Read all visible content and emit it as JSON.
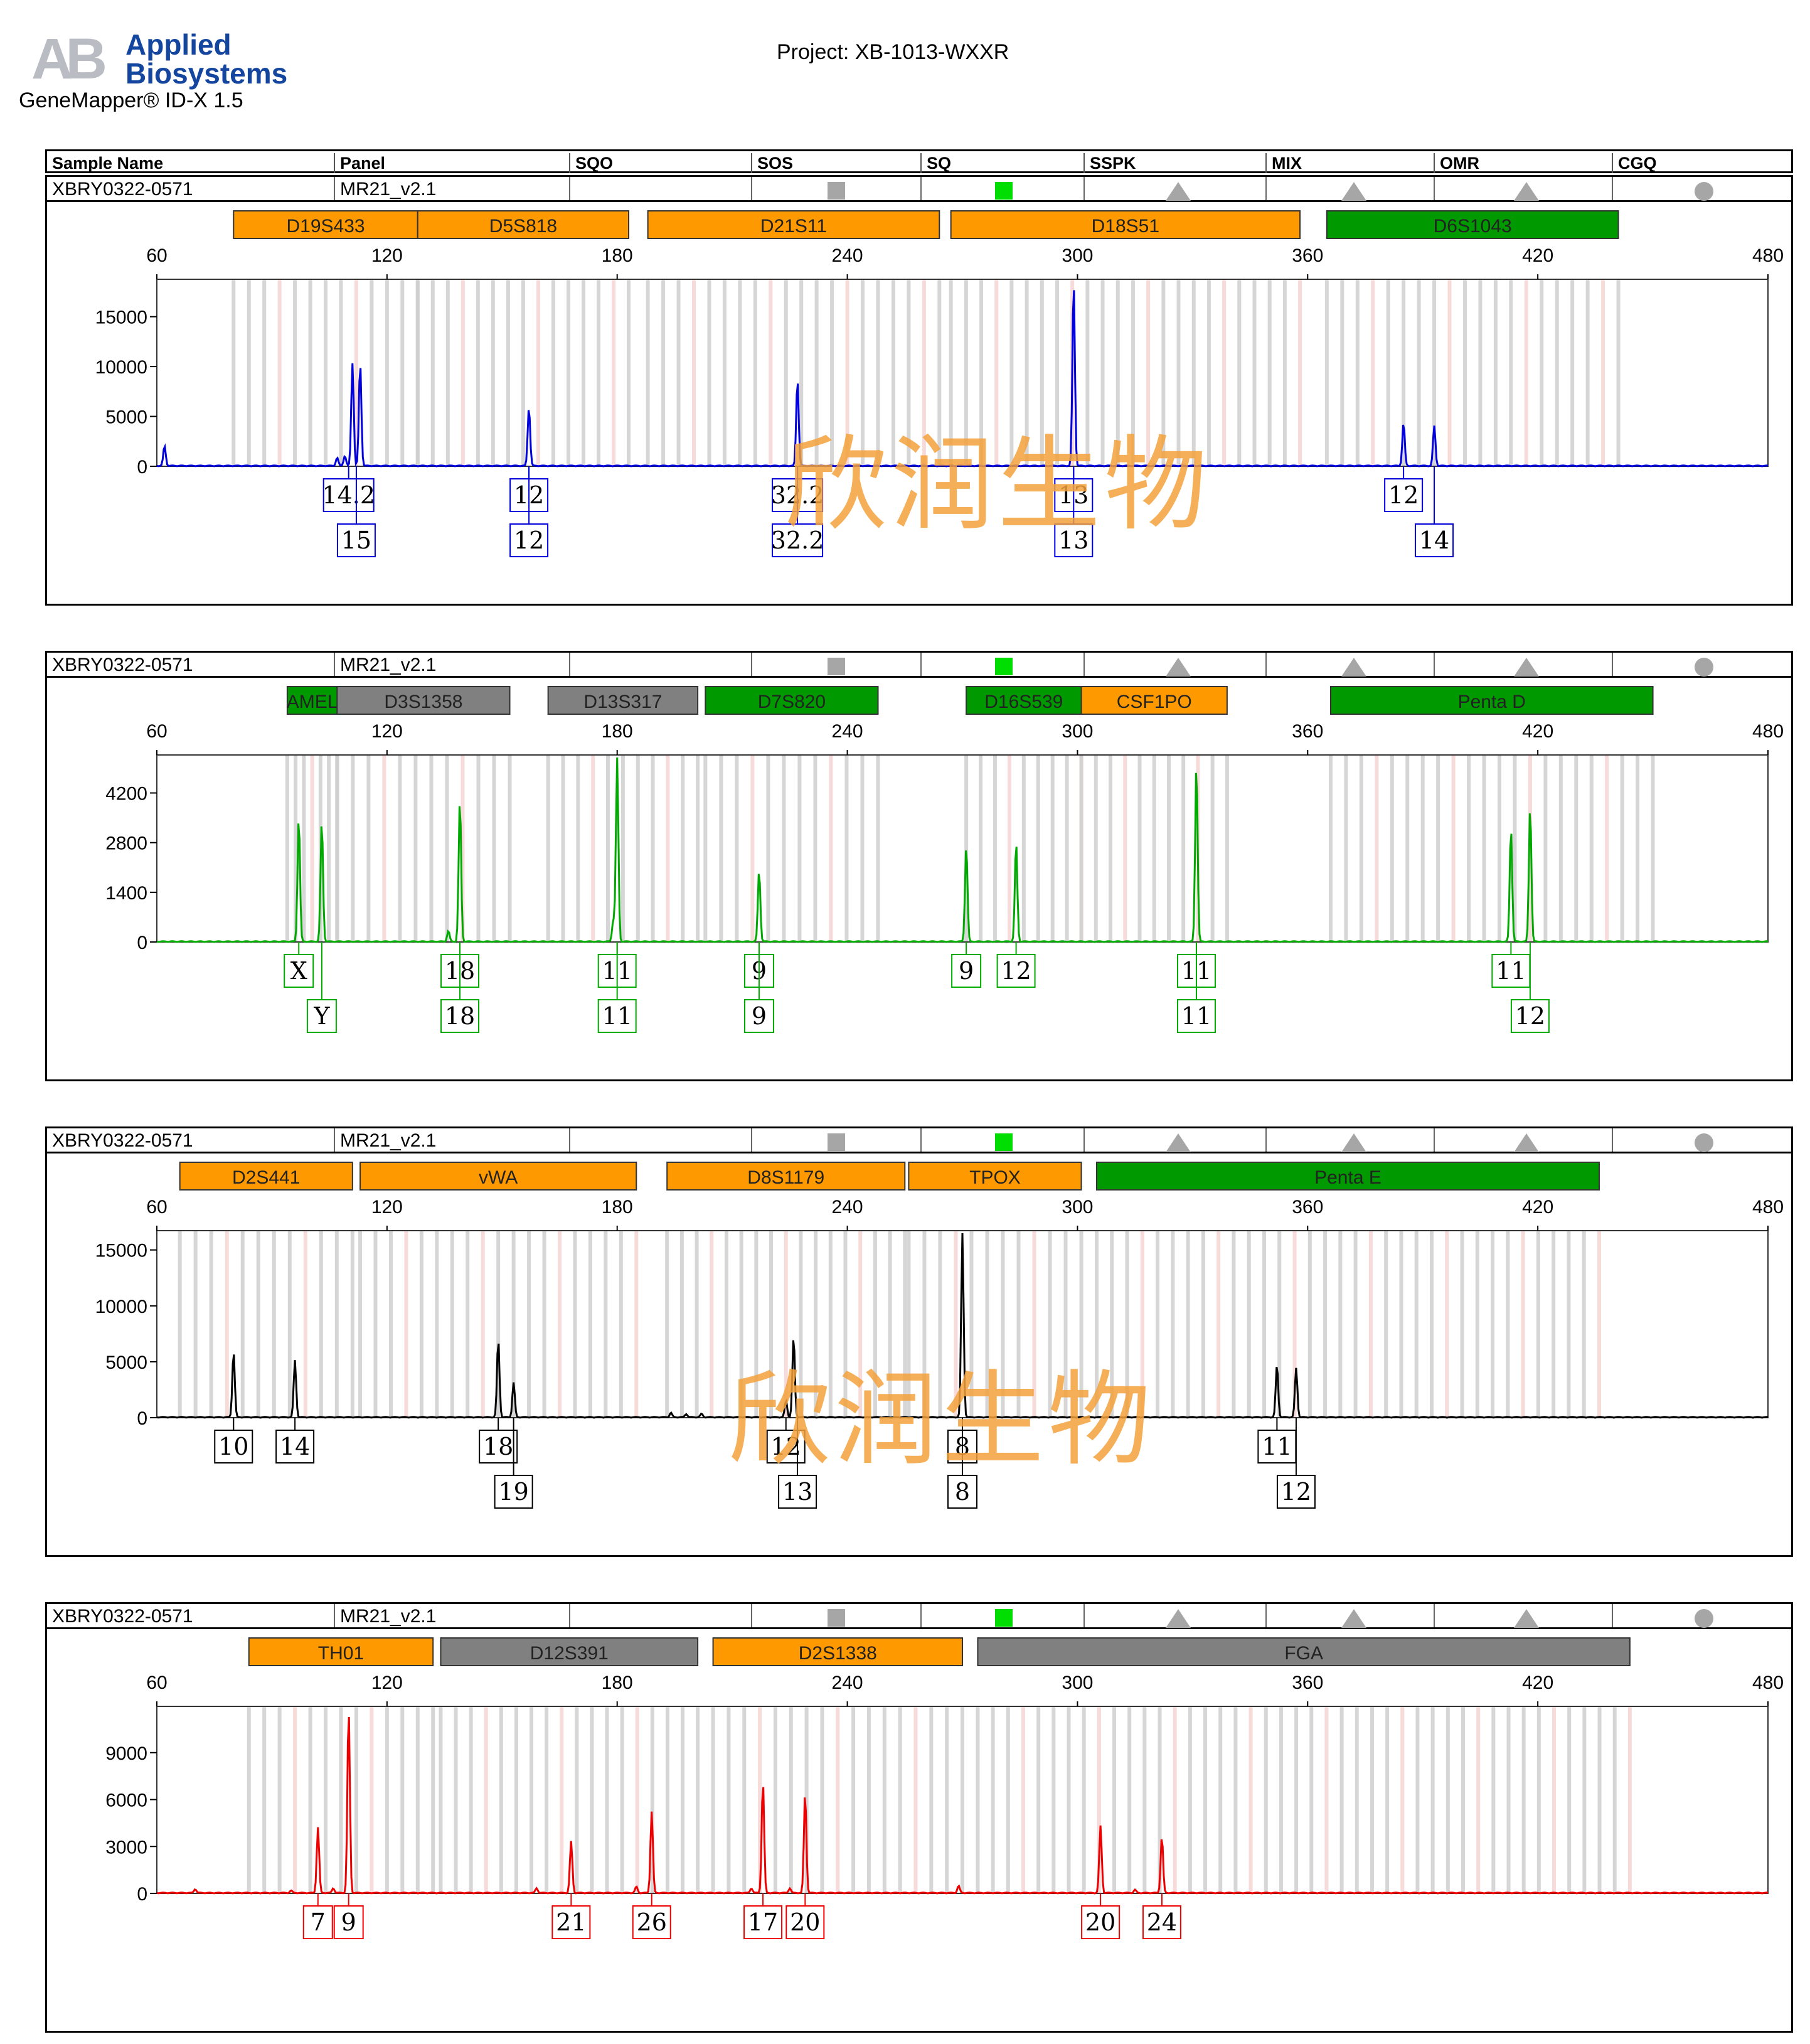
{
  "header": {
    "logo_text": "AB",
    "brand_line1": "Applied",
    "brand_line2": "Biosystems",
    "software": "GeneMapper® ID-X  1.5",
    "project": "Project: XB-1013-WXXR"
  },
  "table": {
    "columns": [
      "Sample Name",
      "Panel",
      "SQO",
      "SOS",
      "SQ",
      "SSPK",
      "MIX",
      "OMR",
      "CGQ"
    ]
  },
  "watermark": "欣润生物",
  "colors": {
    "locus_orange": "#ff9900",
    "locus_green": "#009900",
    "locus_gray": "#808080",
    "blue_dye": "#0000dd",
    "green_dye": "#00aa00",
    "black_dye": "#000000",
    "red_dye": "#ee0000",
    "bin_gray": "#cfcfcf",
    "bin_pink": "#f6d6d6",
    "flag_green": "#00dd00",
    "flag_gray": "#a6a6a6"
  },
  "chart_data": [
    {
      "type": "line",
      "dye": "blue",
      "sample_name": "XBRY0322-0571",
      "panel": "MR21_v2.1",
      "flags": [
        "gray-square",
        "green-square",
        "gray-triangle",
        "gray-triangle",
        "gray-triangle",
        "gray-circle"
      ],
      "x_ticks": [
        60,
        120,
        180,
        240,
        300,
        360,
        420,
        480
      ],
      "xlim": [
        60,
        480
      ],
      "y_ticks": [
        0,
        5000,
        10000,
        15000
      ],
      "ylim": [
        0,
        18500
      ],
      "loci": [
        {
          "name": "D19S433",
          "start": 80,
          "end": 128,
          "status": "orange"
        },
        {
          "name": "D5S818",
          "start": 128,
          "end": 183,
          "status": "orange"
        },
        {
          "name": "D21S11",
          "start": 188,
          "end": 264,
          "status": "orange"
        },
        {
          "name": "D18S51",
          "start": 267,
          "end": 358,
          "status": "orange"
        },
        {
          "name": "D6S1043",
          "start": 365,
          "end": 441,
          "status": "green"
        }
      ],
      "peaks": [
        {
          "x": 62,
          "y": 2000
        },
        {
          "x": 107,
          "y": 800
        },
        {
          "x": 109,
          "y": 1000
        },
        {
          "x": 111,
          "y": 10300
        },
        {
          "x": 113,
          "y": 10300
        },
        {
          "x": 157,
          "y": 5900
        },
        {
          "x": 227,
          "y": 8700
        },
        {
          "x": 299,
          "y": 18500
        },
        {
          "x": 385,
          "y": 4300
        },
        {
          "x": 393,
          "y": 4000
        }
      ],
      "alleles": [
        {
          "x": 110,
          "labels": [
            "14.2",
            "15"
          ],
          "x2": 112
        },
        {
          "x": 157,
          "labels": [
            "12",
            "12"
          ],
          "x2": 157
        },
        {
          "x": 227,
          "labels": [
            "32.2",
            "32.2"
          ],
          "x2": 227
        },
        {
          "x": 299,
          "labels": [
            "13",
            "13"
          ],
          "x2": 299
        },
        {
          "x": 385,
          "labels": [
            "12"
          ]
        },
        {
          "x": 393,
          "labels": [
            "",
            "14"
          ],
          "x2": 393
        }
      ]
    },
    {
      "type": "line",
      "dye": "green",
      "sample_name": "XBRY0322-0571",
      "panel": "MR21_v2.1",
      "flags": [
        "gray-square",
        "green-square",
        "gray-triangle",
        "gray-triangle",
        "gray-triangle",
        "gray-circle"
      ],
      "x_ticks": [
        60,
        120,
        180,
        240,
        300,
        360,
        420,
        480
      ],
      "xlim": [
        60,
        480
      ],
      "y_ticks": [
        0,
        1400,
        2800,
        4200
      ],
      "ylim": [
        0,
        5200
      ],
      "loci": [
        {
          "name": "AMEL",
          "start": 94,
          "end": 107,
          "status": "green"
        },
        {
          "name": "D3S1358",
          "start": 107,
          "end": 152,
          "status": "gray"
        },
        {
          "name": "D13S317",
          "start": 162,
          "end": 201,
          "status": "gray"
        },
        {
          "name": "D7S820",
          "start": 203,
          "end": 248,
          "status": "green"
        },
        {
          "name": "D16S539",
          "start": 271,
          "end": 301,
          "status": "green"
        },
        {
          "name": "CSF1PO",
          "start": 301,
          "end": 339,
          "status": "orange"
        },
        {
          "name": "Penta D",
          "start": 366,
          "end": 450,
          "status": "green"
        }
      ],
      "peaks": [
        {
          "x": 97,
          "y": 3500
        },
        {
          "x": 103,
          "y": 3400
        },
        {
          "x": 136,
          "y": 300
        },
        {
          "x": 139,
          "y": 4000
        },
        {
          "x": 179,
          "y": 600
        },
        {
          "x": 180,
          "y": 5200
        },
        {
          "x": 217,
          "y": 2000
        },
        {
          "x": 271,
          "y": 2700
        },
        {
          "x": 284,
          "y": 2800
        },
        {
          "x": 331,
          "y": 5000
        },
        {
          "x": 413,
          "y": 3200
        },
        {
          "x": 418,
          "y": 3800
        }
      ],
      "alleles": [
        {
          "x": 97,
          "labels": [
            "X"
          ]
        },
        {
          "x": 103,
          "labels": [
            "",
            "Y"
          ],
          "x2": 103
        },
        {
          "x": 139,
          "labels": [
            "18",
            "18"
          ],
          "x2": 139
        },
        {
          "x": 180,
          "labels": [
            "11",
            "11"
          ],
          "x2": 180
        },
        {
          "x": 217,
          "labels": [
            "9",
            "9"
          ],
          "x2": 217
        },
        {
          "x": 271,
          "labels": [
            "9"
          ]
        },
        {
          "x": 284,
          "labels": [
            "12"
          ]
        },
        {
          "x": 331,
          "labels": [
            "11",
            "11"
          ],
          "x2": 331
        },
        {
          "x": 413,
          "labels": [
            "11"
          ]
        },
        {
          "x": 418,
          "labels": [
            "",
            "12"
          ],
          "x2": 418
        }
      ]
    },
    {
      "type": "line",
      "dye": "black",
      "sample_name": "XBRY0322-0571",
      "panel": "MR21_v2.1",
      "flags": [
        "gray-square",
        "green-square",
        "gray-triangle",
        "gray-triangle",
        "gray-triangle",
        "gray-circle"
      ],
      "x_ticks": [
        60,
        120,
        180,
        240,
        300,
        360,
        420,
        480
      ],
      "xlim": [
        60,
        480
      ],
      "y_ticks": [
        0,
        5000,
        10000,
        15000
      ],
      "ylim": [
        0,
        16500
      ],
      "loci": [
        {
          "name": "D2S441",
          "start": 66,
          "end": 111,
          "status": "orange"
        },
        {
          "name": "vWA",
          "start": 113,
          "end": 185,
          "status": "orange"
        },
        {
          "name": "D8S1179",
          "start": 193,
          "end": 255,
          "status": "orange"
        },
        {
          "name": "TPOX",
          "start": 256,
          "end": 301,
          "status": "orange"
        },
        {
          "name": "Penta E",
          "start": 305,
          "end": 436,
          "status": "green"
        }
      ],
      "peaks": [
        {
          "x": 80,
          "y": 5900
        },
        {
          "x": 96,
          "y": 5100
        },
        {
          "x": 149,
          "y": 6900
        },
        {
          "x": 153,
          "y": 3100
        },
        {
          "x": 194,
          "y": 400
        },
        {
          "x": 198,
          "y": 300
        },
        {
          "x": 202,
          "y": 300
        },
        {
          "x": 224,
          "y": 1500
        },
        {
          "x": 226,
          "y": 7200
        },
        {
          "x": 270,
          "y": 16500
        },
        {
          "x": 352,
          "y": 4700
        },
        {
          "x": 357,
          "y": 4400
        }
      ],
      "alleles": [
        {
          "x": 80,
          "labels": [
            "10"
          ]
        },
        {
          "x": 96,
          "labels": [
            "14"
          ]
        },
        {
          "x": 149,
          "labels": [
            "18"
          ]
        },
        {
          "x": 153,
          "labels": [
            "",
            "19"
          ],
          "x2": 153
        },
        {
          "x": 224,
          "labels": [
            "12"
          ]
        },
        {
          "x": 226,
          "labels": [
            "",
            "13"
          ],
          "x2": 227
        },
        {
          "x": 270,
          "labels": [
            "8",
            "8"
          ],
          "x2": 270
        },
        {
          "x": 352,
          "labels": [
            "11"
          ]
        },
        {
          "x": 357,
          "labels": [
            "",
            "12"
          ],
          "x2": 357
        }
      ]
    },
    {
      "type": "line",
      "dye": "red",
      "sample_name": "XBRY0322-0571",
      "panel": "MR21_v2.1",
      "flags": [
        "gray-square",
        "green-square",
        "gray-triangle",
        "gray-triangle",
        "gray-triangle",
        "gray-circle"
      ],
      "x_ticks": [
        60,
        120,
        180,
        240,
        300,
        360,
        420,
        480
      ],
      "xlim": [
        60,
        480
      ],
      "y_ticks": [
        0,
        3000,
        6000,
        9000
      ],
      "ylim": [
        0,
        11800
      ],
      "loci": [
        {
          "name": "TH01",
          "start": 84,
          "end": 132,
          "status": "orange"
        },
        {
          "name": "D12S391",
          "start": 134,
          "end": 201,
          "status": "gray"
        },
        {
          "name": "D2S1338",
          "start": 205,
          "end": 270,
          "status": "orange"
        },
        {
          "name": "FGA",
          "start": 274,
          "end": 444,
          "status": "gray"
        }
      ],
      "peaks": [
        {
          "x": 70,
          "y": 250
        },
        {
          "x": 95,
          "y": 150
        },
        {
          "x": 102,
          "y": 4200
        },
        {
          "x": 106,
          "y": 300
        },
        {
          "x": 110,
          "y": 11800
        },
        {
          "x": 159,
          "y": 300
        },
        {
          "x": 168,
          "y": 3300
        },
        {
          "x": 185,
          "y": 400
        },
        {
          "x": 189,
          "y": 5200
        },
        {
          "x": 215,
          "y": 300
        },
        {
          "x": 218,
          "y": 7100
        },
        {
          "x": 225,
          "y": 300
        },
        {
          "x": 229,
          "y": 6400
        },
        {
          "x": 269,
          "y": 450
        },
        {
          "x": 306,
          "y": 4300
        },
        {
          "x": 315,
          "y": 200
        },
        {
          "x": 322,
          "y": 3600
        }
      ],
      "alleles": [
        {
          "x": 102,
          "labels": [
            "7"
          ]
        },
        {
          "x": 110,
          "labels": [
            "9"
          ]
        },
        {
          "x": 168,
          "labels": [
            "21"
          ]
        },
        {
          "x": 189,
          "labels": [
            "26"
          ]
        },
        {
          "x": 218,
          "labels": [
            "17"
          ]
        },
        {
          "x": 229,
          "labels": [
            "20"
          ]
        },
        {
          "x": 306,
          "labels": [
            "20"
          ]
        },
        {
          "x": 322,
          "labels": [
            "24"
          ]
        }
      ]
    }
  ]
}
